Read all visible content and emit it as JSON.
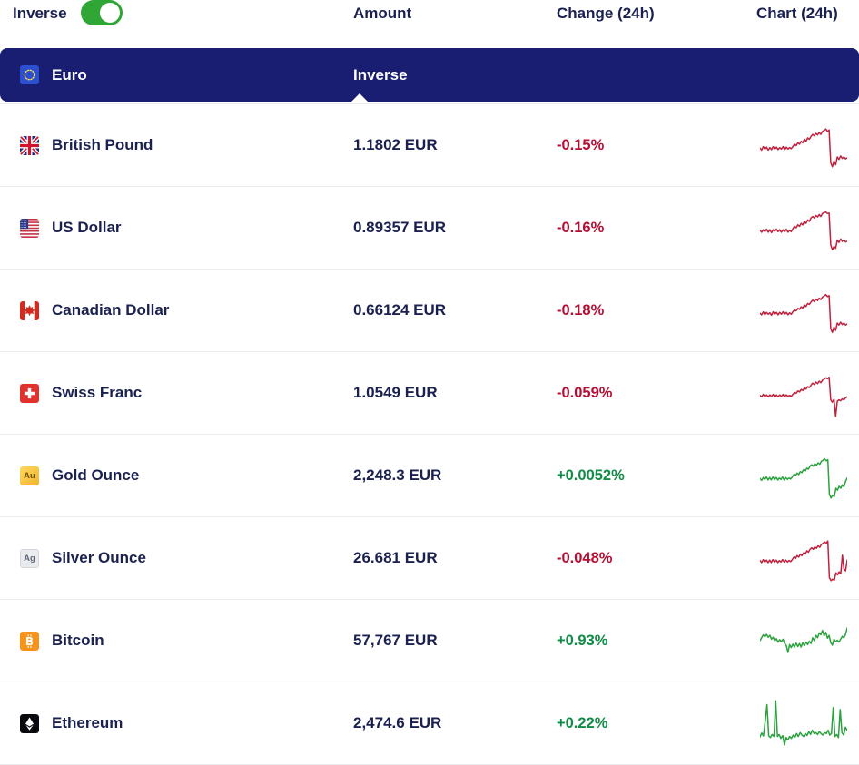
{
  "header": {
    "inverse_label": "Inverse",
    "toggle_state": "on",
    "columns": {
      "amount": "Amount",
      "change": "Change (24h)",
      "chart": "Chart (24h)"
    }
  },
  "banner": {
    "name": "Euro",
    "value_label": "Inverse",
    "flag": "eu-flag-icon"
  },
  "colors": {
    "banner": "#191e72",
    "text": "#1a2150",
    "negative": "#b80d33",
    "positive": "#0f8c45",
    "spark_negative": "#c2203c",
    "spark_positive": "#2ba23e",
    "toggle": "#30a636",
    "divider": "#eaeaef"
  },
  "rows": [
    {
      "name": "British Pound",
      "flag": "gb-flag-icon",
      "amount": "1.1802 EUR",
      "change": "-0.15%",
      "direction": "down",
      "spark": [
        44,
        40,
        47,
        42,
        46,
        40,
        45,
        41,
        47,
        42,
        46,
        41,
        45,
        42,
        47,
        41,
        46,
        42,
        45,
        43,
        47,
        52,
        49,
        55,
        52,
        58,
        55,
        62,
        58,
        65,
        62,
        68,
        72,
        69,
        74,
        71,
        76,
        72,
        78,
        80,
        83,
        78,
        81,
        14,
        6,
        18,
        10,
        26,
        21,
        28,
        23,
        26,
        22,
        24
      ]
    },
    {
      "name": "US Dollar",
      "flag": "us-flag-icon",
      "amount": "0.89357 EUR",
      "change": "-0.16%",
      "direction": "down",
      "spark": [
        45,
        41,
        46,
        42,
        47,
        41,
        46,
        40,
        46,
        43,
        47,
        42,
        46,
        41,
        46,
        42,
        47,
        41,
        45,
        42,
        48,
        53,
        50,
        56,
        53,
        59,
        56,
        63,
        59,
        66,
        63,
        70,
        73,
        70,
        75,
        72,
        77,
        73,
        79,
        81,
        82,
        79,
        80,
        15,
        5,
        12,
        8,
        25,
        20,
        27,
        22,
        25,
        21,
        23
      ]
    },
    {
      "name": "Canadian Dollar",
      "flag": "ca-flag-icon",
      "amount": "0.66124 EUR",
      "change": "-0.18%",
      "direction": "down",
      "spark": [
        44,
        41,
        47,
        41,
        46,
        42,
        45,
        40,
        47,
        42,
        46,
        41,
        46,
        42,
        47,
        42,
        46,
        41,
        45,
        42,
        47,
        51,
        49,
        54,
        52,
        57,
        55,
        61,
        58,
        64,
        62,
        67,
        71,
        68,
        73,
        70,
        75,
        72,
        77,
        79,
        82,
        78,
        80,
        13,
        5,
        16,
        9,
        24,
        20,
        26,
        21,
        24,
        20,
        22
      ]
    },
    {
      "name": "Swiss Franc",
      "flag": "ch-flag-icon",
      "amount": "1.0549 EUR",
      "change": "-0.059%",
      "direction": "down",
      "spark": [
        45,
        42,
        47,
        43,
        46,
        42,
        46,
        43,
        47,
        42,
        46,
        42,
        46,
        43,
        47,
        42,
        46,
        43,
        45,
        43,
        47,
        51,
        49,
        54,
        52,
        57,
        55,
        60,
        58,
        63,
        61,
        66,
        70,
        67,
        72,
        69,
        74,
        71,
        76,
        78,
        81,
        79,
        82,
        36,
        31,
        37,
        2,
        33,
        36,
        34,
        38,
        36,
        40,
        42
      ]
    },
    {
      "name": "Gold Ounce",
      "flag": "gold-icon",
      "badge_label": "Au",
      "amount": "2,248.3 EUR",
      "change": "+0.0052%",
      "direction": "up",
      "spark": [
        44,
        40,
        46,
        42,
        47,
        41,
        46,
        41,
        47,
        42,
        46,
        41,
        45,
        42,
        47,
        41,
        46,
        42,
        45,
        43,
        47,
        52,
        50,
        55,
        52,
        58,
        56,
        62,
        59,
        65,
        63,
        69,
        72,
        69,
        74,
        71,
        76,
        73,
        79,
        81,
        84,
        80,
        82,
        12,
        4,
        10,
        7,
        24,
        20,
        28,
        24,
        31,
        27,
        38,
        45
      ]
    },
    {
      "name": "Silver Ounce",
      "flag": "silver-icon",
      "badge_label": "Ag",
      "amount": "26.681 EUR",
      "change": "-0.048%",
      "direction": "down",
      "spark": [
        45,
        41,
        47,
        42,
        46,
        41,
        46,
        41,
        47,
        42,
        46,
        41,
        45,
        42,
        47,
        42,
        46,
        42,
        45,
        43,
        47,
        52,
        49,
        55,
        52,
        58,
        55,
        61,
        58,
        65,
        62,
        68,
        71,
        68,
        73,
        70,
        75,
        72,
        78,
        80,
        83,
        80,
        85,
        10,
        4,
        7,
        5,
        20,
        16,
        22,
        18,
        56,
        28,
        24,
        46
      ]
    },
    {
      "name": "Bitcoin",
      "flag": "bitcoin-icon",
      "symbol": "₿",
      "amount": "57,767 EUR",
      "change": "+0.93%",
      "direction": "up",
      "spark": [
        50,
        56,
        62,
        58,
        63,
        57,
        61,
        53,
        57,
        50,
        54,
        47,
        52,
        48,
        53,
        44,
        40,
        26,
        42,
        36,
        43,
        37,
        45,
        38,
        44,
        37,
        46,
        40,
        47,
        42,
        49,
        44,
        56,
        50,
        61,
        56,
        66,
        62,
        71,
        60,
        67,
        55,
        61,
        46,
        41,
        53,
        48,
        51,
        47,
        53,
        59,
        56,
        63,
        76
      ]
    },
    {
      "name": "Ethereum",
      "flag": "ethereum-icon",
      "amount": "2,474.6 EUR",
      "change": "+0.22%",
      "direction": "up",
      "spark": [
        22,
        30,
        24,
        55,
        88,
        24,
        21,
        27,
        23,
        96,
        23,
        27,
        19,
        25,
        6,
        21,
        16,
        23,
        19,
        26,
        21,
        29,
        23,
        31,
        26,
        23,
        29,
        25,
        33,
        27,
        36,
        29,
        31,
        27,
        33,
        29,
        26,
        31,
        29,
        36,
        26,
        29,
        82,
        23,
        27,
        21,
        78,
        31,
        26,
        42,
        36
      ]
    }
  ]
}
